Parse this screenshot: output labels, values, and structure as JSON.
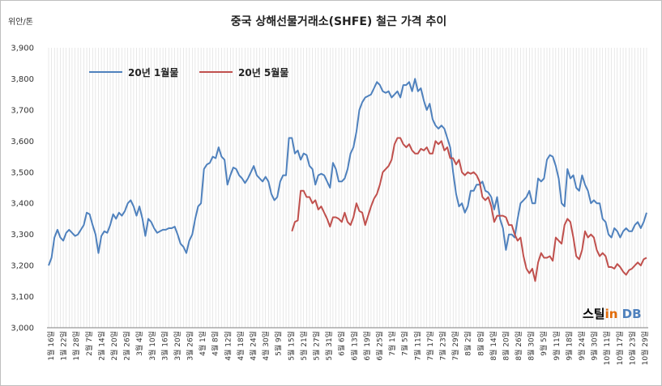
{
  "chart_data": {
    "type": "line",
    "title": "중국 상해선물거래소(SHFE) 철근 가격 추이",
    "ylabel": "위안/톤",
    "ylim": [
      3000,
      3900
    ],
    "yticks": [
      "3,000",
      "3,100",
      "3,200",
      "3,300",
      "3,400",
      "3,500",
      "3,600",
      "3,700",
      "3,800",
      "3,900"
    ],
    "grid": "vertical gridlines",
    "legend_position": "top-left",
    "x_tick_labels": [
      "1월 16일",
      "1월 22일",
      "1월 28일",
      "2월 7일",
      "2월 14일",
      "2월 20일",
      "2월 26일",
      "3월 4일",
      "3월 10일",
      "3월 16일",
      "3월 20일",
      "3월 26일",
      "4월 1일",
      "4월 8일",
      "4월 12일",
      "4월 18일",
      "4월 24일",
      "4월 30일",
      "5월 9일",
      "5월 15일",
      "5월 21일",
      "5월 27일",
      "5월 31일",
      "6월 6일",
      "6월 13일",
      "6월 19일",
      "6월 25일",
      "7월 1일",
      "7월 5일",
      "7월 11일",
      "7월 17일",
      "7월 23일",
      "7월 29일",
      "8월 2일",
      "8월 8일",
      "8월 14일",
      "8월 20일",
      "8월 26일",
      "8월 30일",
      "9월 5일",
      "9월 11일",
      "9월 18일",
      "9월 24일",
      "9월 30일",
      "10월 11일",
      "10월 17일",
      "10월 23일",
      "10월 29일"
    ],
    "series": [
      {
        "name": "20년 1월물",
        "color": "#4f81bd",
        "values": [
          3200,
          3225,
          3290,
          3315,
          3290,
          3280,
          3305,
          3315,
          3305,
          3295,
          3300,
          3315,
          3330,
          3370,
          3365,
          3330,
          3300,
          3240,
          3295,
          3310,
          3305,
          3330,
          3365,
          3350,
          3370,
          3360,
          3375,
          3400,
          3410,
          3390,
          3360,
          3390,
          3350,
          3295,
          3350,
          3340,
          3320,
          3305,
          3310,
          3315,
          3315,
          3320,
          3320,
          3325,
          3300,
          3270,
          3260,
          3240,
          3280,
          3300,
          3350,
          3390,
          3400,
          3510,
          3525,
          3530,
          3550,
          3545,
          3580,
          3550,
          3540,
          3460,
          3490,
          3515,
          3510,
          3490,
          3480,
          3465,
          3480,
          3500,
          3520,
          3490,
          3480,
          3470,
          3485,
          3470,
          3430,
          3410,
          3420,
          3470,
          3490,
          3490,
          3610,
          3610,
          3560,
          3570,
          3540,
          3560,
          3555,
          3520,
          3510,
          3460,
          3490,
          3495,
          3490,
          3470,
          3450,
          3530,
          3510,
          3470,
          3470,
          3480,
          3510,
          3560,
          3580,
          3630,
          3700,
          3725,
          3740,
          3745,
          3750,
          3770,
          3790,
          3780,
          3760,
          3755,
          3760,
          3740,
          3750,
          3760,
          3740,
          3780,
          3780,
          3790,
          3760,
          3800,
          3760,
          3770,
          3730,
          3700,
          3720,
          3670,
          3650,
          3640,
          3650,
          3640,
          3610,
          3580,
          3500,
          3430,
          3390,
          3400,
          3370,
          3390,
          3440,
          3440,
          3460,
          3460,
          3470,
          3440,
          3435,
          3420,
          3380,
          3420,
          3350,
          3320,
          3250,
          3300,
          3300,
          3290,
          3350,
          3400,
          3410,
          3420,
          3440,
          3400,
          3400,
          3480,
          3470,
          3480,
          3540,
          3555,
          3550,
          3520,
          3480,
          3400,
          3390,
          3510,
          3480,
          3490,
          3450,
          3440,
          3490,
          3460,
          3440,
          3400,
          3410,
          3400,
          3400,
          3350,
          3340,
          3300,
          3290,
          3320,
          3310,
          3290,
          3310,
          3320,
          3310,
          3310,
          3330,
          3340,
          3320,
          3340,
          3370
        ]
      },
      {
        "name": "20년 5월물",
        "color": "#c0504d",
        "values": [
          3310,
          3340,
          3345,
          3440,
          3440,
          3420,
          3420,
          3400,
          3410,
          3380,
          3390,
          3370,
          3350,
          3325,
          3355,
          3355,
          3350,
          3340,
          3370,
          3340,
          3330,
          3355,
          3400,
          3375,
          3370,
          3330,
          3360,
          3390,
          3415,
          3430,
          3460,
          3500,
          3510,
          3520,
          3540,
          3590,
          3610,
          3610,
          3590,
          3580,
          3590,
          3570,
          3560,
          3560,
          3575,
          3570,
          3580,
          3560,
          3560,
          3600,
          3590,
          3600,
          3570,
          3580,
          3545,
          3545,
          3525,
          3540,
          3500,
          3490,
          3500,
          3495,
          3500,
          3490,
          3470,
          3420,
          3410,
          3420,
          3390,
          3340,
          3360,
          3360,
          3360,
          3355,
          3330,
          3330,
          3300,
          3280,
          3290,
          3230,
          3190,
          3175,
          3190,
          3150,
          3210,
          3240,
          3225,
          3225,
          3230,
          3215,
          3290,
          3280,
          3270,
          3330,
          3350,
          3340,
          3290,
          3230,
          3220,
          3250,
          3310,
          3290,
          3300,
          3290,
          3250,
          3230,
          3240,
          3230,
          3195,
          3195,
          3190,
          3205,
          3195,
          3180,
          3170,
          3185,
          3190,
          3200,
          3210,
          3200,
          3220,
          3225
        ]
      }
    ]
  },
  "logo": {
    "name": "스틸in DB",
    "part1": "스틸",
    "part2": "in",
    "part3": " DB",
    "color1": "#000000",
    "color2": "#e36c09",
    "color3": "#4f81bd"
  }
}
